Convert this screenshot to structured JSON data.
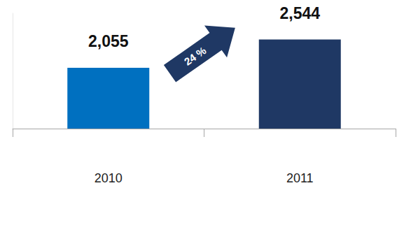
{
  "chart_data": {
    "type": "bar",
    "categories": [
      "2010",
      "2011"
    ],
    "values": [
      2055,
      2544
    ],
    "value_labels": [
      "2,055",
      "2,544"
    ],
    "colors": [
      "#0070c0",
      "#1f3864"
    ],
    "ylim": [
      1000,
      3000
    ],
    "grid": false,
    "data_labels": true,
    "tick_labels": "x",
    "annotation": "24 %"
  }
}
